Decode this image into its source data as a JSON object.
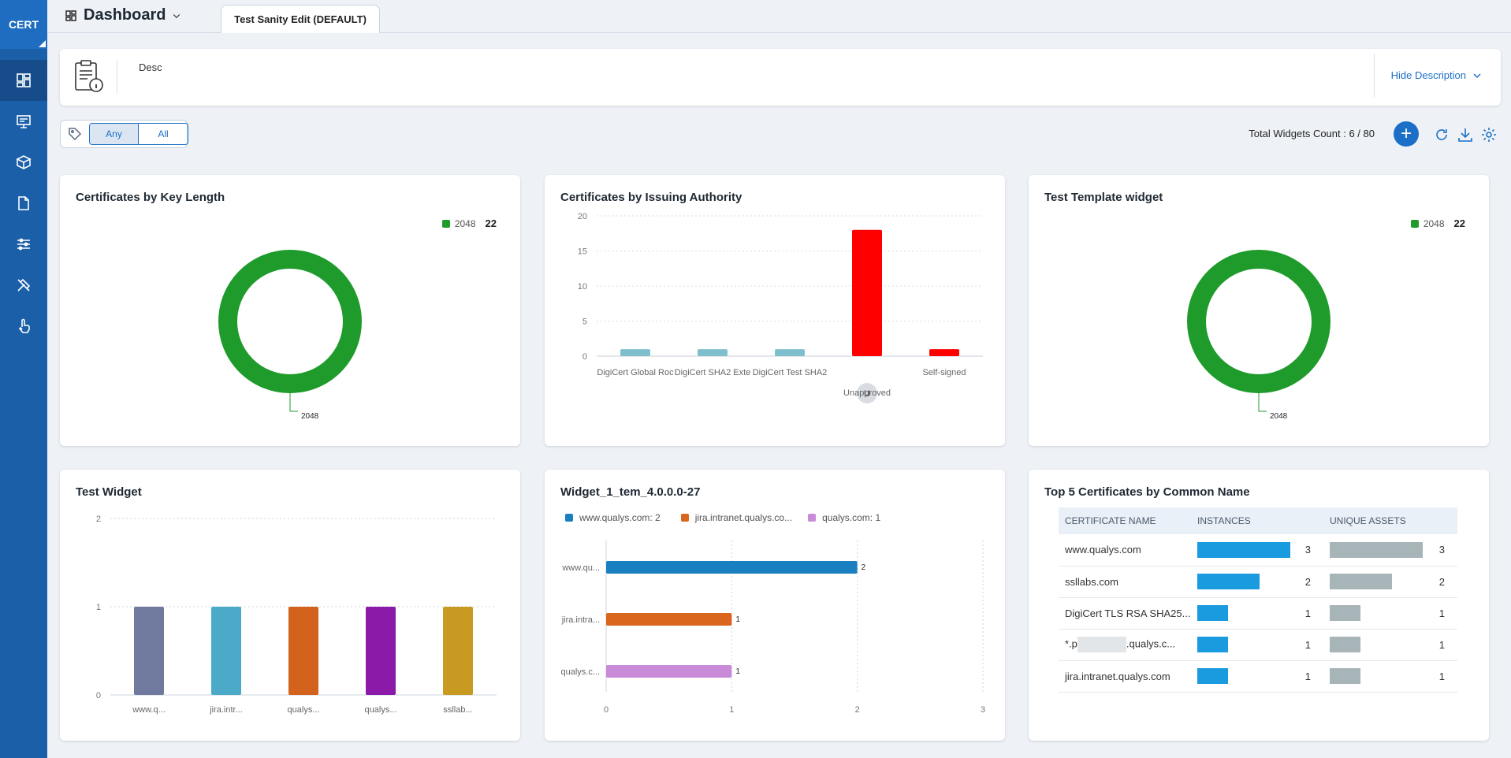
{
  "app": {
    "brand": "CERT"
  },
  "sidebar": {
    "items": [
      {
        "icon": "dashboard-icon",
        "active": true
      },
      {
        "icon": "monitor-icon"
      },
      {
        "icon": "cube-icon"
      },
      {
        "icon": "document-icon"
      },
      {
        "icon": "sliders-icon"
      },
      {
        "icon": "tools-icon"
      },
      {
        "icon": "hand-pointer-icon"
      }
    ]
  },
  "header": {
    "title": "Dashboard",
    "tab": "Test Sanity Edit (DEFAULT)"
  },
  "description": {
    "text": "Desc",
    "toggle_label": "Hide Description"
  },
  "toolbar": {
    "any_label": "Any",
    "all_label": "All",
    "count_label": "Total Widgets Count : 6 / 80"
  },
  "widgets": {
    "key_length": {
      "title": "Certificates by Key Length",
      "legend_label": "2048",
      "legend_value": "22",
      "slice_label": "2048"
    },
    "issuing": {
      "title": "Certificates by Issuing Authority",
      "badge": "U"
    },
    "template": {
      "title": "Test Template widget",
      "legend_label": "2048",
      "legend_value": "22",
      "slice_label": "2048"
    },
    "test_widget": {
      "title": "Test Widget"
    },
    "widget1": {
      "title": "Widget_1_tem_4.0.0.0-27",
      "legend": [
        "www.qualys.com: 2",
        "jira.intranet.qualys.co...",
        "qualys.com: 1"
      ]
    },
    "top5": {
      "title": "Top 5 Certificates by Common Name",
      "columns": [
        "CERTIFICATE NAME",
        "INSTANCES",
        "UNIQUE ASSETS"
      ],
      "rows": [
        {
          "name": "www.qualys.com",
          "instances": 3,
          "assets": 3
        },
        {
          "name": "ssllabs.com",
          "instances": 2,
          "assets": 2
        },
        {
          "name": "DigiCert TLS RSA SHA25...",
          "instances": 1,
          "assets": 1
        },
        {
          "name": "*.p",
          "name_suffix": ".qualys.c...",
          "redacted": true,
          "instances": 1,
          "assets": 1
        },
        {
          "name": "jira.intranet.qualys.com",
          "instances": 1,
          "assets": 1
        }
      ]
    }
  },
  "chart_data": [
    {
      "type": "pie",
      "title": "Certificates by Key Length",
      "categories": [
        "2048"
      ],
      "values": [
        22
      ],
      "colors": [
        "#1f9b2c"
      ]
    },
    {
      "type": "bar",
      "title": "Certificates by Issuing Authority",
      "categories": [
        "DigiCert Global Roc",
        "DigiCert SHA2 Exte",
        "DigiCert Test SHA2",
        "Unapproved",
        "Self-signed"
      ],
      "values": [
        1,
        1,
        1,
        18,
        1
      ],
      "colors": [
        "#7fbfcd",
        "#7fbfcd",
        "#7fbfcd",
        "#ff0000",
        "#ff0000"
      ],
      "ylim": [
        0,
        20
      ],
      "yticks": [
        0,
        5,
        10,
        15,
        20
      ]
    },
    {
      "type": "pie",
      "title": "Test Template widget",
      "categories": [
        "2048"
      ],
      "values": [
        22
      ],
      "colors": [
        "#1f9b2c"
      ]
    },
    {
      "type": "bar",
      "title": "Test Widget",
      "categories": [
        "www.q...",
        "jira.intr...",
        "qualys...",
        "qualys...",
        "ssllab..."
      ],
      "values": [
        1,
        1,
        1,
        1,
        1
      ],
      "colors": [
        "#707a9e",
        "#4aaac8",
        "#d2621c",
        "#8b1aa8",
        "#c99a22"
      ],
      "ylim": [
        0,
        2
      ],
      "yticks": [
        0,
        1,
        2
      ]
    },
    {
      "type": "bar",
      "title": "Widget_1_tem_4.0.0.0-27",
      "orientation": "horizontal",
      "categories": [
        "www.qu...",
        "jira.intra...",
        "qualys.c..."
      ],
      "values": [
        2,
        1,
        1
      ],
      "colors": [
        "#1a7fc0",
        "#d9661c",
        "#c98ad8"
      ],
      "xlim": [
        0,
        3
      ],
      "xticks": [
        0,
        1,
        2,
        3
      ]
    }
  ]
}
